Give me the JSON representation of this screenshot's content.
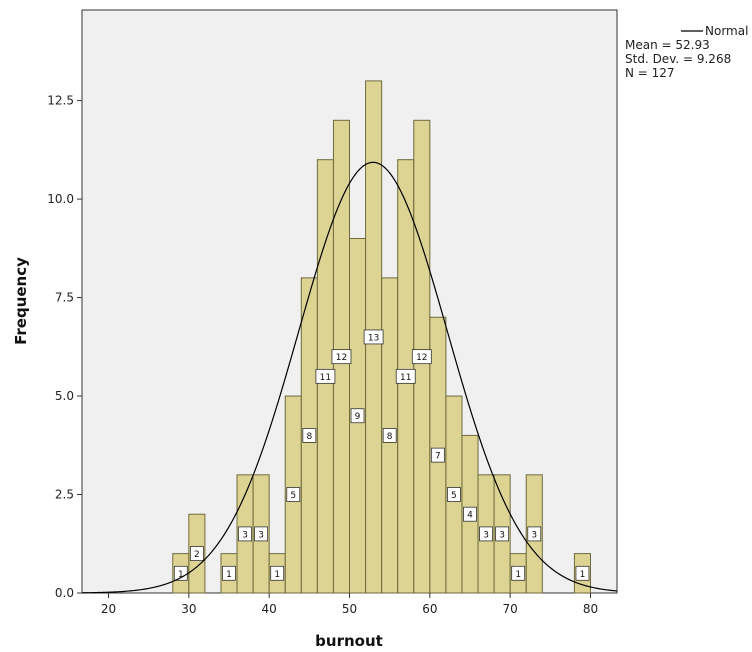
{
  "chart_data": {
    "type": "bar",
    "xlabel": "burnout",
    "ylabel": "Frequency",
    "xlim": [
      16.7,
      83.3
    ],
    "ylim": [
      0,
      14.8
    ],
    "x_ticks": [
      20,
      30,
      40,
      50,
      60,
      70,
      80
    ],
    "y_ticks": [
      0.0,
      2.5,
      5.0,
      7.5,
      10.0,
      12.5
    ],
    "y_tick_labels": [
      "0.0",
      "2.5",
      "5.0",
      "7.5",
      "10.0",
      "12.5"
    ],
    "bin_width": 2,
    "bins": [
      {
        "x": 29,
        "count": 1
      },
      {
        "x": 31,
        "count": 2
      },
      {
        "x": 35,
        "count": 1
      },
      {
        "x": 37,
        "count": 3
      },
      {
        "x": 39,
        "count": 3
      },
      {
        "x": 41,
        "count": 1
      },
      {
        "x": 43,
        "count": 5
      },
      {
        "x": 45,
        "count": 8
      },
      {
        "x": 47,
        "count": 11
      },
      {
        "x": 49,
        "count": 12
      },
      {
        "x": 51,
        "count": 9
      },
      {
        "x": 53,
        "count": 13
      },
      {
        "x": 55,
        "count": 8
      },
      {
        "x": 57,
        "count": 11
      },
      {
        "x": 59,
        "count": 12
      },
      {
        "x": 61,
        "count": 7
      },
      {
        "x": 63,
        "count": 5
      },
      {
        "x": 65,
        "count": 4
      },
      {
        "x": 67,
        "count": 3
      },
      {
        "x": 69,
        "count": 3
      },
      {
        "x": 71,
        "count": 1
      },
      {
        "x": 73,
        "count": 3
      },
      {
        "x": 79,
        "count": 1
      }
    ],
    "normal_curve": {
      "mean": 52.93,
      "sd": 9.268,
      "n": 127
    },
    "legend": {
      "series_name": "Normal",
      "lines": [
        "Mean = 52.93",
        "Std. Dev. = 9.268",
        "N = 127"
      ],
      "placement": "top-right"
    },
    "grid": false,
    "colors": {
      "bar_fill": "#d9cf84",
      "bar_stroke": "#6f6a3c",
      "plot_background": "#f0f0f0",
      "curve": "#000000"
    }
  }
}
